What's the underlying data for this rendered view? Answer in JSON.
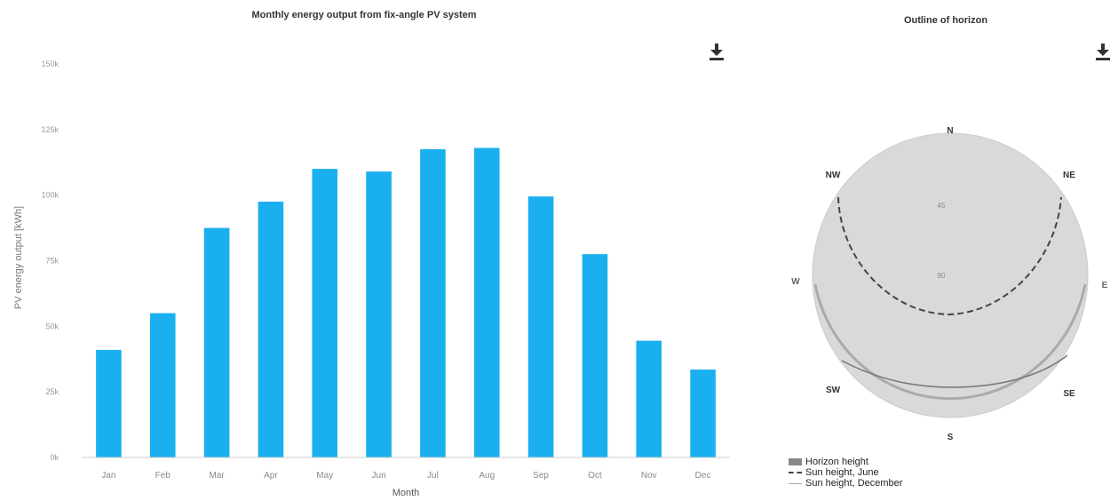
{
  "chart_data": [
    {
      "type": "bar",
      "title": "Monthly energy output from fix-angle PV system",
      "xlabel": "Month",
      "ylabel": "PV energy output [kWh]",
      "categories": [
        "Jan",
        "Feb",
        "Mar",
        "Apr",
        "May",
        "Jun",
        "Jul",
        "Aug",
        "Sep",
        "Oct",
        "Nov",
        "Dec"
      ],
      "values": [
        41000,
        55000,
        87500,
        97500,
        110000,
        109000,
        117500,
        118000,
        99500,
        77500,
        44500,
        33500
      ],
      "ylim": [
        0,
        150000
      ],
      "yticks": [
        0,
        25000,
        50000,
        75000,
        100000,
        125000,
        150000
      ],
      "ytick_labels": [
        "0k",
        "25k",
        "50k",
        "75k",
        "100k",
        "125k",
        "150k"
      ],
      "bar_color": "#1ab0ef",
      "grid": false
    },
    {
      "type": "polar",
      "title": "Outline of horizon",
      "directions": [
        "N",
        "NE",
        "E",
        "SE",
        "S",
        "SW",
        "W",
        "NW"
      ],
      "radial_labels": [
        "45",
        "90"
      ],
      "legend": [
        "Horizon height",
        "Sun height, June",
        "Sun height, December"
      ],
      "legend_placement": "bottom-left",
      "fill_color": "#d9d9d9"
    }
  ],
  "icons": {
    "download": "download-icon"
  }
}
